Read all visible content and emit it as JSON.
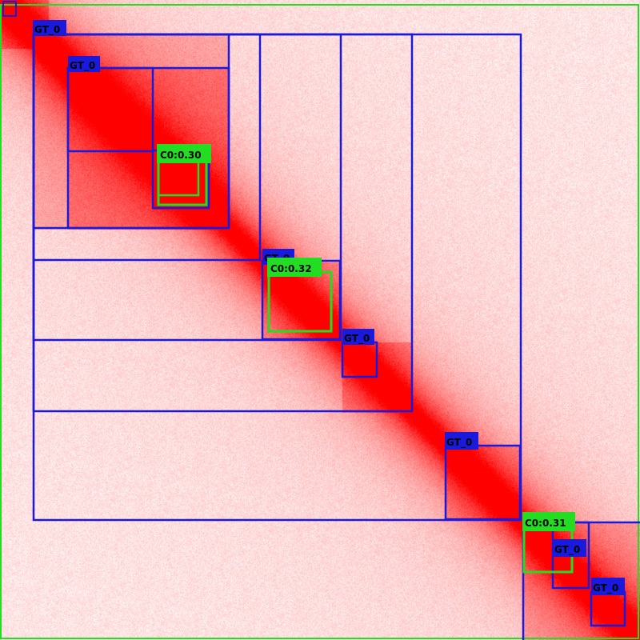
{
  "image": {
    "kind": "contact-map heatmap with detection boxes",
    "heat_color": "#ff0000",
    "background_color": "#ffffff"
  },
  "colors": {
    "ground_truth_box": "#1a1adc",
    "prediction_box": "#22dd22",
    "border": "#22dd22",
    "label_text": "#000000"
  },
  "ground_truth_label": "GT_0",
  "prediction_labels": [
    "C0:0.30",
    "C0:0.32",
    "C0:0.31"
  ]
}
